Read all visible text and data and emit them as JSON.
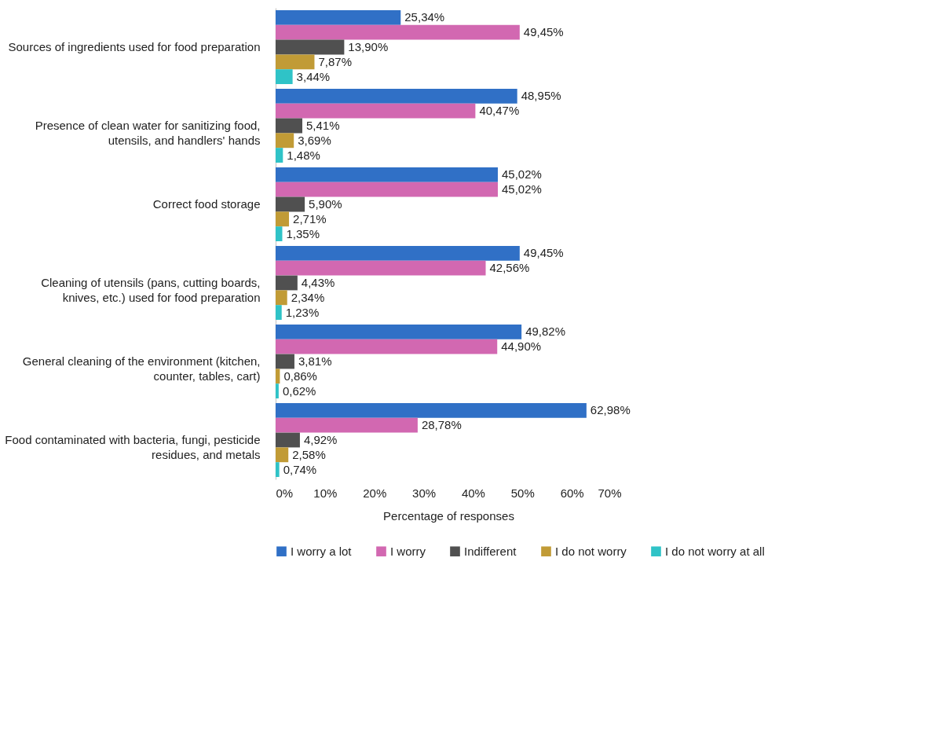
{
  "chart_data": {
    "type": "bar",
    "orientation": "horizontal",
    "xlabel": "Percentage of responses",
    "categories": [
      "Sources of ingredients used for food preparation",
      "Presence of clean water for sanitizing food, utensils, and handlers' hands",
      "Correct food storage",
      "Cleaning of utensils (pans, cutting boards, knives, etc.) used for food preparation",
      "General cleaning of the environment (kitchen, counter, tables, cart)",
      "Food contaminated with bacteria, fungi, pesticide residues, and metals"
    ],
    "series": [
      {
        "name": "I worry a lot",
        "color": "#3070c6",
        "values": [
          25.34,
          48.95,
          45.02,
          49.45,
          49.82,
          62.98
        ],
        "value_labels": [
          "25,34%",
          "48,95%",
          "45,02%",
          "49,45%",
          "49,82%",
          "62,98%"
        ]
      },
      {
        "name": "I worry",
        "color": "#d268b1",
        "values": [
          49.45,
          40.47,
          45.02,
          42.56,
          44.9,
          28.78
        ],
        "value_labels": [
          "49,45%",
          "40,47%",
          "45,02%",
          "42,56%",
          "44,90%",
          "28,78%"
        ]
      },
      {
        "name": "Indifferent",
        "color": "#505050",
        "values": [
          13.9,
          5.41,
          5.9,
          4.43,
          3.81,
          4.92
        ],
        "value_labels": [
          "13,90%",
          "5,41%",
          "5,90%",
          "4,43%",
          "3,81%",
          "4,92%"
        ]
      },
      {
        "name": "I do not worry",
        "color": "#c19b36",
        "values": [
          7.87,
          3.69,
          2.71,
          2.34,
          0.86,
          2.58
        ],
        "value_labels": [
          "7,87%",
          "3,69%",
          "2,71%",
          "2,34%",
          "0,86%",
          "2,58%"
        ]
      },
      {
        "name": "I do not worry at all",
        "color": "#2fc3c7",
        "values": [
          3.44,
          1.48,
          1.35,
          1.23,
          0.62,
          0.74
        ],
        "value_labels": [
          "3,44%",
          "1,48%",
          "1,35%",
          "1,23%",
          "0,62%",
          "0,74%"
        ]
      }
    ],
    "xlim": [
      0,
      70
    ],
    "xticks": [
      {
        "value": 0,
        "label": "0%"
      },
      {
        "value": 10,
        "label": "10%"
      },
      {
        "value": 20,
        "label": "20%"
      },
      {
        "value": 30,
        "label": "30%"
      },
      {
        "value": 40,
        "label": "40%"
      },
      {
        "value": 50,
        "label": "50%"
      },
      {
        "value": 60,
        "label": "60%"
      },
      {
        "value": 70,
        "label": "70%"
      }
    ],
    "grid": false,
    "legend": "bottom"
  }
}
